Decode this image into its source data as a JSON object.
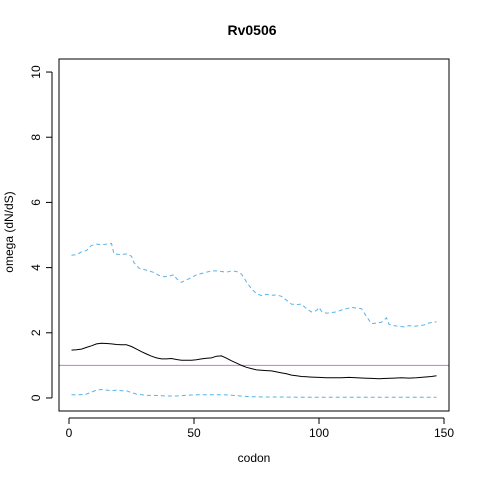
{
  "chart_data": {
    "type": "line",
    "title": "Rv0506",
    "xlabel": "codon",
    "ylabel": "omega (dN/dS)",
    "xlim": [
      -4,
      152
    ],
    "ylim": [
      -0.4,
      10.4
    ],
    "x_ticks": [
      0,
      50,
      100,
      150
    ],
    "y_ticks": [
      0,
      2,
      4,
      6,
      8,
      10
    ],
    "grid": false,
    "legend": "none",
    "reference_line": {
      "y": 1,
      "color": "#c77cc7"
    },
    "series": [
      {
        "style": "solid",
        "color": "#000000",
        "points": [
          [
            1,
            1.47
          ],
          [
            3,
            1.48
          ],
          [
            5,
            1.5
          ],
          [
            7,
            1.55
          ],
          [
            9,
            1.6
          ],
          [
            11,
            1.66
          ],
          [
            13,
            1.68
          ],
          [
            15,
            1.67
          ],
          [
            17,
            1.66
          ],
          [
            19,
            1.64
          ],
          [
            21,
            1.63
          ],
          [
            23,
            1.63
          ],
          [
            25,
            1.58
          ],
          [
            27,
            1.5
          ],
          [
            29,
            1.42
          ],
          [
            31,
            1.35
          ],
          [
            33,
            1.28
          ],
          [
            35,
            1.23
          ],
          [
            37,
            1.2
          ],
          [
            39,
            1.2
          ],
          [
            41,
            1.21
          ],
          [
            43,
            1.18
          ],
          [
            45,
            1.16
          ],
          [
            47,
            1.16
          ],
          [
            49,
            1.16
          ],
          [
            51,
            1.17
          ],
          [
            53,
            1.2
          ],
          [
            55,
            1.22
          ],
          [
            57,
            1.23
          ],
          [
            59,
            1.28
          ],
          [
            61,
            1.29
          ],
          [
            63,
            1.22
          ],
          [
            65,
            1.14
          ],
          [
            67,
            1.07
          ],
          [
            69,
            1.0
          ],
          [
            71,
            0.94
          ],
          [
            73,
            0.9
          ],
          [
            75,
            0.86
          ],
          [
            77,
            0.85
          ],
          [
            79,
            0.84
          ],
          [
            81,
            0.83
          ],
          [
            83,
            0.8
          ],
          [
            85,
            0.77
          ],
          [
            87,
            0.74
          ],
          [
            89,
            0.7
          ],
          [
            91,
            0.68
          ],
          [
            93,
            0.66
          ],
          [
            95,
            0.65
          ],
          [
            97,
            0.64
          ],
          [
            100,
            0.63
          ],
          [
            103,
            0.62
          ],
          [
            106,
            0.62
          ],
          [
            109,
            0.62
          ],
          [
            112,
            0.63
          ],
          [
            115,
            0.62
          ],
          [
            118,
            0.61
          ],
          [
            121,
            0.6
          ],
          [
            124,
            0.59
          ],
          [
            127,
            0.6
          ],
          [
            130,
            0.61
          ],
          [
            133,
            0.62
          ],
          [
            136,
            0.61
          ],
          [
            139,
            0.62
          ],
          [
            142,
            0.64
          ],
          [
            145,
            0.66
          ],
          [
            147,
            0.68
          ]
        ]
      },
      {
        "style": "dashed",
        "color": "#56b4e9",
        "points": [
          [
            1,
            4.38
          ],
          [
            3,
            4.4
          ],
          [
            5,
            4.48
          ],
          [
            7,
            4.52
          ],
          [
            9,
            4.68
          ],
          [
            11,
            4.72
          ],
          [
            13,
            4.7
          ],
          [
            15,
            4.72
          ],
          [
            17,
            4.74
          ],
          [
            18,
            4.42
          ],
          [
            21,
            4.4
          ],
          [
            23,
            4.42
          ],
          [
            25,
            4.35
          ],
          [
            26,
            4.15
          ],
          [
            28,
            3.98
          ],
          [
            30,
            3.94
          ],
          [
            32,
            3.9
          ],
          [
            34,
            3.85
          ],
          [
            36,
            3.76
          ],
          [
            38,
            3.72
          ],
          [
            40,
            3.74
          ],
          [
            42,
            3.78
          ],
          [
            43,
            3.66
          ],
          [
            45,
            3.55
          ],
          [
            47,
            3.62
          ],
          [
            49,
            3.7
          ],
          [
            51,
            3.78
          ],
          [
            53,
            3.82
          ],
          [
            55,
            3.86
          ],
          [
            57,
            3.9
          ],
          [
            59,
            3.9
          ],
          [
            61,
            3.88
          ],
          [
            63,
            3.86
          ],
          [
            65,
            3.9
          ],
          [
            67,
            3.88
          ],
          [
            69,
            3.8
          ],
          [
            71,
            3.56
          ],
          [
            73,
            3.35
          ],
          [
            75,
            3.2
          ],
          [
            77,
            3.14
          ],
          [
            79,
            3.18
          ],
          [
            81,
            3.15
          ],
          [
            83,
            3.16
          ],
          [
            85,
            3.12
          ],
          [
            87,
            3.0
          ],
          [
            89,
            2.88
          ],
          [
            91,
            2.86
          ],
          [
            93,
            2.88
          ],
          [
            95,
            2.74
          ],
          [
            97,
            2.64
          ],
          [
            99,
            2.68
          ],
          [
            100,
            2.78
          ],
          [
            101,
            2.66
          ],
          [
            103,
            2.6
          ],
          [
            105,
            2.62
          ],
          [
            107,
            2.64
          ],
          [
            109,
            2.7
          ],
          [
            111,
            2.74
          ],
          [
            113,
            2.78
          ],
          [
            115,
            2.76
          ],
          [
            117,
            2.74
          ],
          [
            119,
            2.5
          ],
          [
            121,
            2.28
          ],
          [
            123,
            2.3
          ],
          [
            125,
            2.32
          ],
          [
            127,
            2.46
          ],
          [
            128,
            2.26
          ],
          [
            130,
            2.22
          ],
          [
            132,
            2.2
          ],
          [
            134,
            2.18
          ],
          [
            136,
            2.22
          ],
          [
            138,
            2.2
          ],
          [
            140,
            2.22
          ],
          [
            142,
            2.24
          ],
          [
            144,
            2.3
          ],
          [
            147,
            2.34
          ]
        ]
      },
      {
        "style": "dashed",
        "color": "#56b4e9",
        "points": [
          [
            1,
            0.1
          ],
          [
            4,
            0.1
          ],
          [
            7,
            0.12
          ],
          [
            9,
            0.18
          ],
          [
            11,
            0.24
          ],
          [
            13,
            0.26
          ],
          [
            15,
            0.24
          ],
          [
            17,
            0.22
          ],
          [
            19,
            0.24
          ],
          [
            21,
            0.22
          ],
          [
            23,
            0.22
          ],
          [
            25,
            0.16
          ],
          [
            27,
            0.12
          ],
          [
            29,
            0.1
          ],
          [
            31,
            0.08
          ],
          [
            34,
            0.08
          ],
          [
            37,
            0.07
          ],
          [
            40,
            0.06
          ],
          [
            43,
            0.06
          ],
          [
            46,
            0.08
          ],
          [
            49,
            0.09
          ],
          [
            52,
            0.1
          ],
          [
            55,
            0.1
          ],
          [
            58,
            0.1
          ],
          [
            61,
            0.1
          ],
          [
            64,
            0.09
          ],
          [
            67,
            0.07
          ],
          [
            70,
            0.05
          ],
          [
            73,
            0.04
          ],
          [
            78,
            0.03
          ],
          [
            85,
            0.03
          ],
          [
            95,
            0.02
          ],
          [
            105,
            0.02
          ],
          [
            115,
            0.02
          ],
          [
            125,
            0.02
          ],
          [
            135,
            0.02
          ],
          [
            147,
            0.02
          ]
        ]
      }
    ]
  }
}
